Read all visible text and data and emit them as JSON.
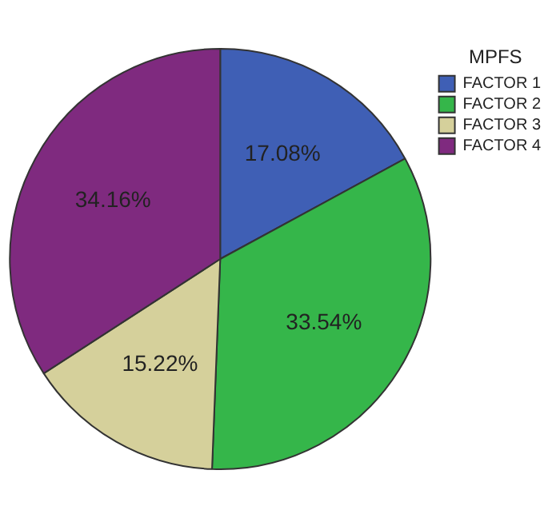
{
  "chart_data": {
    "type": "pie",
    "legend_title": "MPFS",
    "legend": "top right",
    "categories": [
      "FACTOR 1",
      "FACTOR 2",
      "FACTOR 3",
      "FACTOR 4"
    ],
    "values": [
      17.08,
      33.54,
      15.22,
      34.16
    ],
    "value_labels": [
      "17.08%",
      "33.54%",
      "15.22%",
      "34.16%"
    ],
    "colors": [
      "#3f5fb5",
      "#35b64a",
      "#d5d09b",
      "#7f2a7f"
    ]
  }
}
